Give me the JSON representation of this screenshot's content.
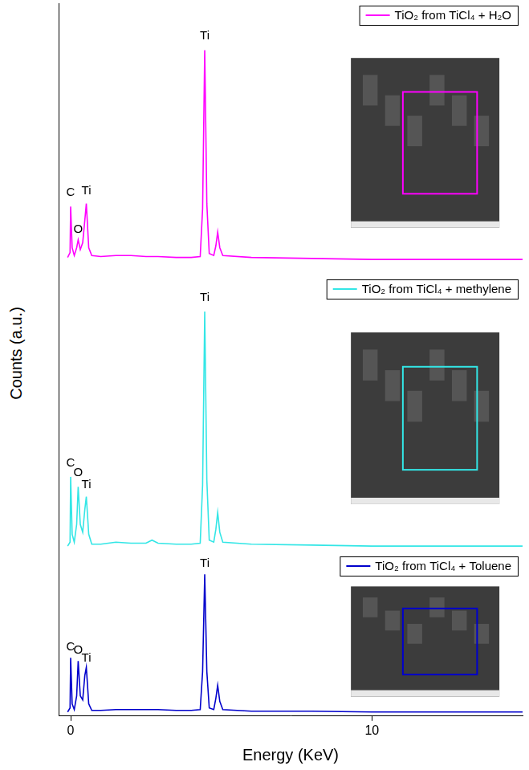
{
  "chart_data": {
    "type": "line",
    "x_label": "Energy (KeV)",
    "y_label": "Counts (a.u.)",
    "xlim": [
      -0.4,
      15
    ],
    "xticks": [
      0,
      10
    ],
    "tick_labels": "x",
    "grid": false,
    "legend": "upper right",
    "x": [
      -0.1,
      -0.02,
      0.0,
      0.05,
      0.12,
      0.2,
      0.25,
      0.32,
      0.4,
      0.47,
      0.52,
      0.6,
      0.7,
      1.0,
      1.5,
      2.0,
      2.5,
      2.7,
      2.9,
      3.5,
      4.0,
      4.3,
      4.38,
      4.45,
      4.52,
      4.6,
      4.75,
      4.82,
      4.88,
      4.95,
      5.05,
      6,
      8,
      10,
      12,
      15
    ],
    "series": [
      {
        "name": "TiO₂ from TiCl₄ + H₂O",
        "color": "#ff00ff",
        "ylim": [
          0,
          280
        ],
        "values": [
          20,
          25,
          72,
          30,
          22,
          30,
          38,
          28,
          35,
          58,
          75,
          30,
          22,
          21,
          22,
          22,
          21,
          21,
          21,
          20,
          20,
          21,
          70,
          232,
          75,
          24,
          22,
          32,
          46,
          30,
          22,
          20,
          19,
          18,
          18,
          18
        ],
        "annotations": [
          {
            "text": "C",
            "x": 0.0,
            "y": 80
          },
          {
            "text": "O",
            "x": 0.25,
            "y": 42
          },
          {
            "text": "Ti",
            "x": 0.52,
            "y": 82
          },
          {
            "text": "Ti",
            "x": 4.45,
            "y": 240
          }
        ]
      },
      {
        "name": "TiO₂ from TiCl₄ + methylene",
        "color": "#33e6e6",
        "ylim": [
          0,
          280
        ],
        "values": [
          8,
          12,
          78,
          20,
          12,
          30,
          68,
          30,
          22,
          45,
          58,
          20,
          10,
          10,
          12,
          11,
          11,
          14,
          11,
          10,
          10,
          11,
          70,
          245,
          75,
          14,
          12,
          25,
          42,
          22,
          12,
          10,
          9,
          8,
          8,
          8
        ],
        "annotations": [
          {
            "text": "C",
            "x": 0.0,
            "y": 86
          },
          {
            "text": "O",
            "x": 0.25,
            "y": 76
          },
          {
            "text": "Ti",
            "x": 0.52,
            "y": 64
          },
          {
            "text": "Ti",
            "x": 4.45,
            "y": 253
          }
        ]
      },
      {
        "name": "TiO₂ from TiCl₄ + Toluene",
        "color": "#0000cc",
        "ylim": [
          0,
          200
        ],
        "values": [
          5,
          10,
          72,
          15,
          8,
          25,
          68,
          25,
          20,
          50,
          60,
          15,
          7,
          7,
          8,
          8,
          8,
          8,
          8,
          7,
          7,
          8,
          55,
          175,
          55,
          10,
          8,
          22,
          38,
          18,
          8,
          6,
          6,
          5,
          5,
          5
        ],
        "annotations": [
          {
            "text": "C",
            "x": 0.0,
            "y": 78
          },
          {
            "text": "O",
            "x": 0.25,
            "y": 74
          },
          {
            "text": "Ti",
            "x": 0.52,
            "y": 64
          },
          {
            "text": "Ti",
            "x": 4.45,
            "y": 181
          }
        ]
      }
    ]
  }
}
